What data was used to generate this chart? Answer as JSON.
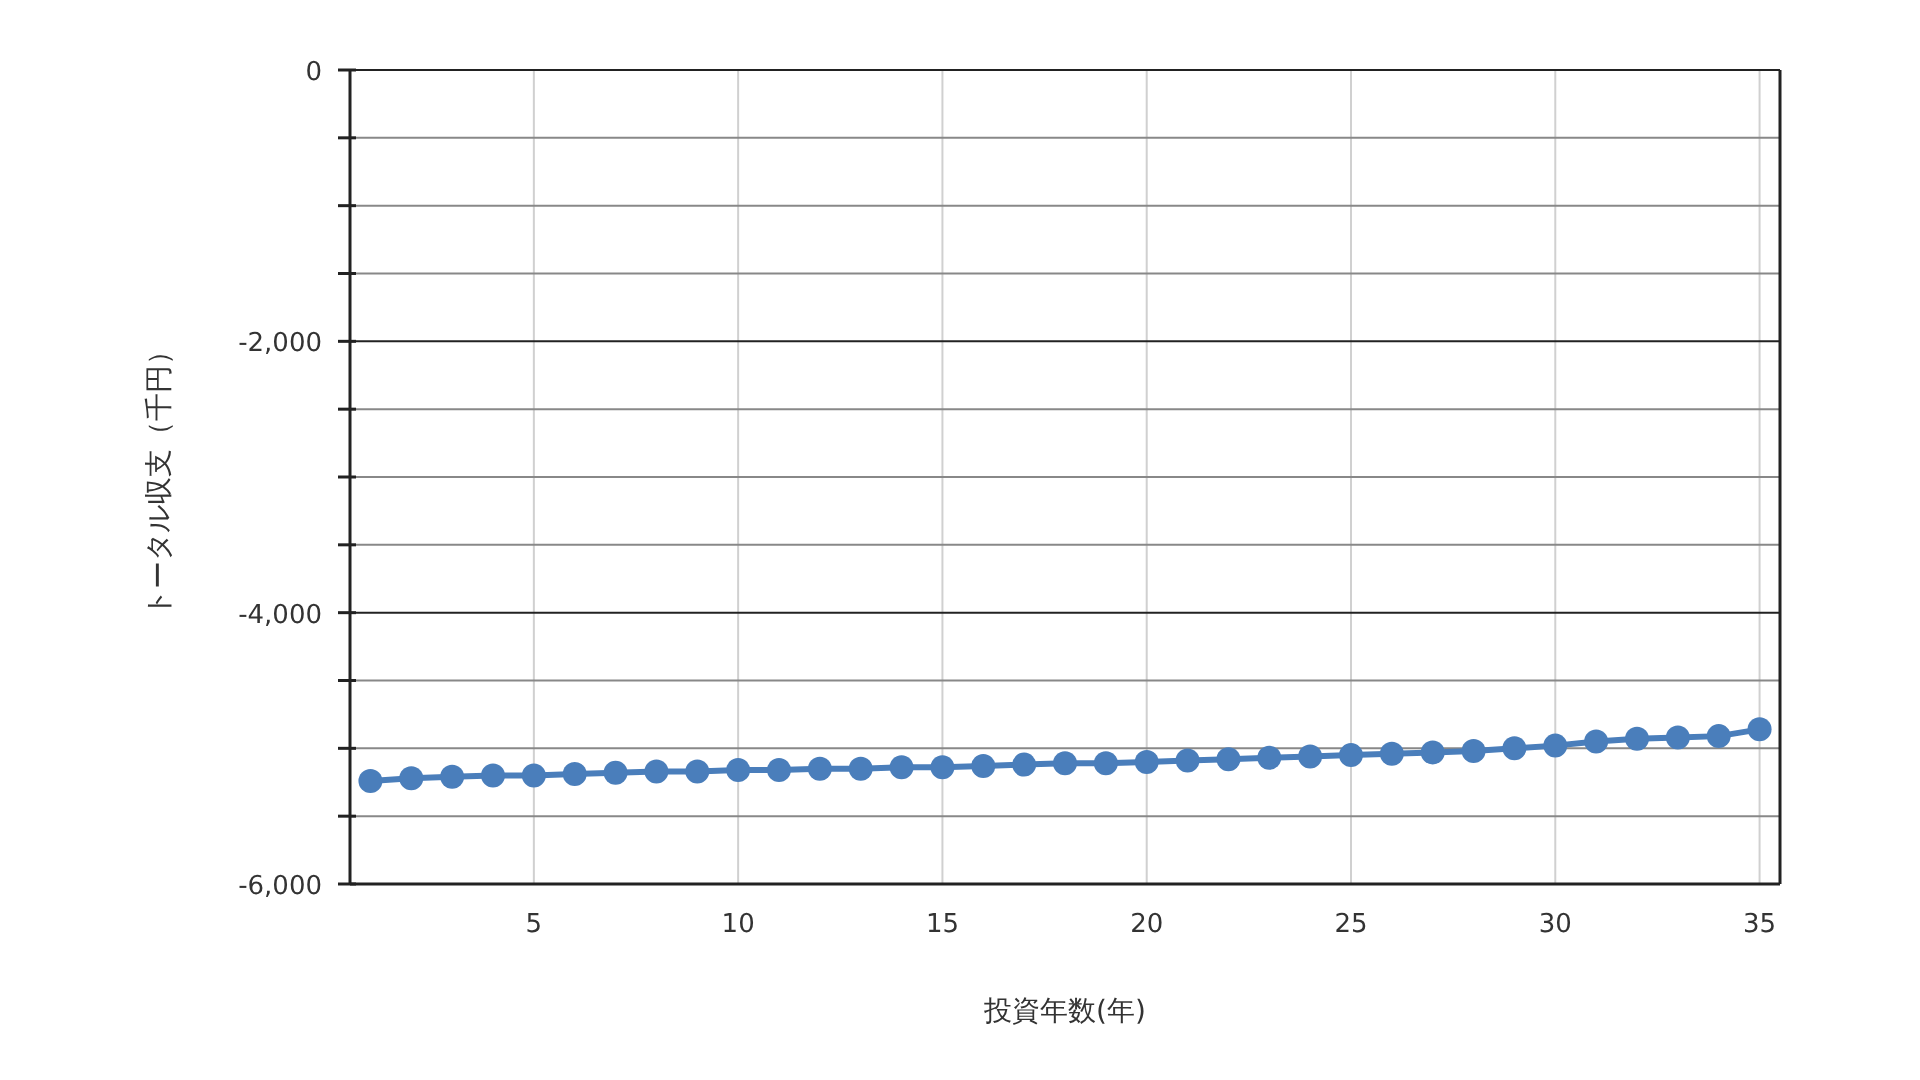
{
  "chart_data": {
    "type": "line",
    "xlabel": "投資年数(年)",
    "ylabel": "トータル収支（千円）",
    "x": [
      1,
      2,
      3,
      4,
      5,
      6,
      7,
      8,
      9,
      10,
      11,
      12,
      13,
      14,
      15,
      16,
      17,
      18,
      19,
      20,
      21,
      22,
      23,
      24,
      25,
      26,
      27,
      28,
      29,
      30,
      31,
      32,
      33,
      34,
      35
    ],
    "series": [
      {
        "color": "#4a7ebb",
        "values": [
          -5240,
          -5220,
          -5210,
          -5200,
          -5200,
          -5190,
          -5180,
          -5170,
          -5170,
          -5160,
          -5160,
          -5150,
          -5150,
          -5140,
          -5140,
          -5130,
          -5120,
          -5110,
          -5110,
          -5100,
          -5090,
          -5080,
          -5070,
          -5060,
          -5050,
          -5040,
          -5030,
          -5020,
          -5000,
          -4980,
          -4950,
          -4930,
          -4920,
          -4910,
          -4860
        ]
      }
    ],
    "xlim": [
      0.5,
      35.5
    ],
    "xticks": [
      5,
      10,
      15,
      20,
      25,
      30,
      35
    ],
    "ylim": [
      -6000,
      0
    ],
    "yticks": [
      {
        "value": 0,
        "label": "0"
      },
      {
        "value": -500,
        "label": null
      },
      {
        "value": -1000,
        "label": null
      },
      {
        "value": -1500,
        "label": null
      },
      {
        "value": -2000,
        "label": "-2,000"
      },
      {
        "value": -2500,
        "label": null
      },
      {
        "value": -3000,
        "label": null
      },
      {
        "value": -3500,
        "label": null
      },
      {
        "value": -4000,
        "label": "-4,000"
      },
      {
        "value": -4500,
        "label": null
      },
      {
        "value": -5000,
        "label": null
      },
      {
        "value": -5500,
        "label": null
      },
      {
        "value": -6000,
        "label": "-6,000"
      }
    ],
    "grid": true,
    "marker": "circle",
    "line_style": "solid"
  }
}
